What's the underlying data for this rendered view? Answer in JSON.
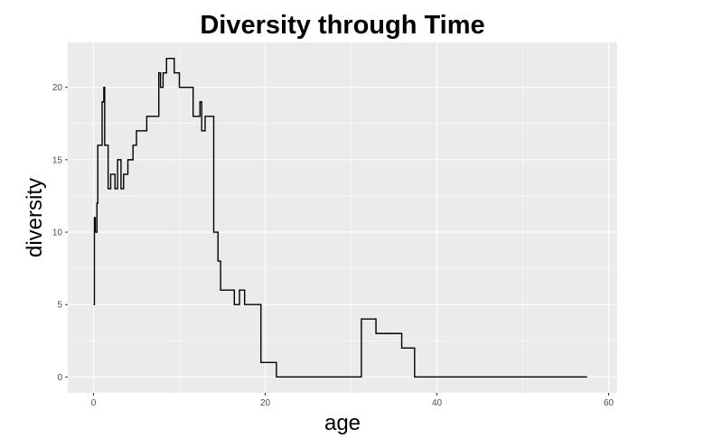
{
  "chart_data": {
    "type": "line",
    "style": "step",
    "title": "Diversity through Time",
    "xlabel": "age",
    "ylabel": "diversity",
    "xlim": [
      -3,
      61
    ],
    "ylim": [
      -1.1,
      23.1
    ],
    "x_ticks": [
      0,
      20,
      40,
      60
    ],
    "y_ticks": [
      0,
      5,
      10,
      15,
      20
    ],
    "x_tick_labels": [
      "0",
      "20",
      "40",
      "60"
    ],
    "y_tick_labels": [
      "0",
      "5",
      "10",
      "15",
      "20"
    ],
    "grid": true,
    "background": "#ebebeb",
    "grid_color": "#ffffff",
    "line_color": "#000000",
    "series": [
      {
        "x": [
          0.0,
          0.1,
          0.2,
          0.4,
          0.5,
          1.0,
          1.2,
          1.3,
          1.4,
          1.7,
          2.0,
          2.5,
          2.8,
          3.2,
          3.5,
          4.0,
          4.6,
          5.0,
          6.0,
          6.2,
          7.5,
          7.6,
          7.8,
          8.1,
          8.5,
          9.4,
          10.0,
          10.4,
          11.0,
          11.6,
          12.2,
          12.4,
          12.6,
          12.8,
          13.0,
          14.0,
          14.3,
          14.5,
          14.8,
          15.2,
          16.4,
          17.0,
          17.6,
          18.6,
          19.5,
          21.3,
          31.0,
          31.2,
          32.9,
          35.9,
          37.4,
          57.5
        ],
        "y": [
          5,
          11,
          10,
          12,
          16,
          19,
          20,
          16,
          16,
          13,
          14,
          13,
          15,
          13,
          14,
          15,
          16,
          17,
          17,
          18,
          18,
          21,
          20,
          21,
          22,
          21,
          20,
          20,
          20,
          18,
          18,
          19,
          17,
          17,
          18,
          10,
          10,
          8,
          6,
          6,
          5,
          6,
          5,
          5,
          1,
          0,
          0,
          4,
          3,
          2,
          0,
          0
        ]
      }
    ]
  }
}
